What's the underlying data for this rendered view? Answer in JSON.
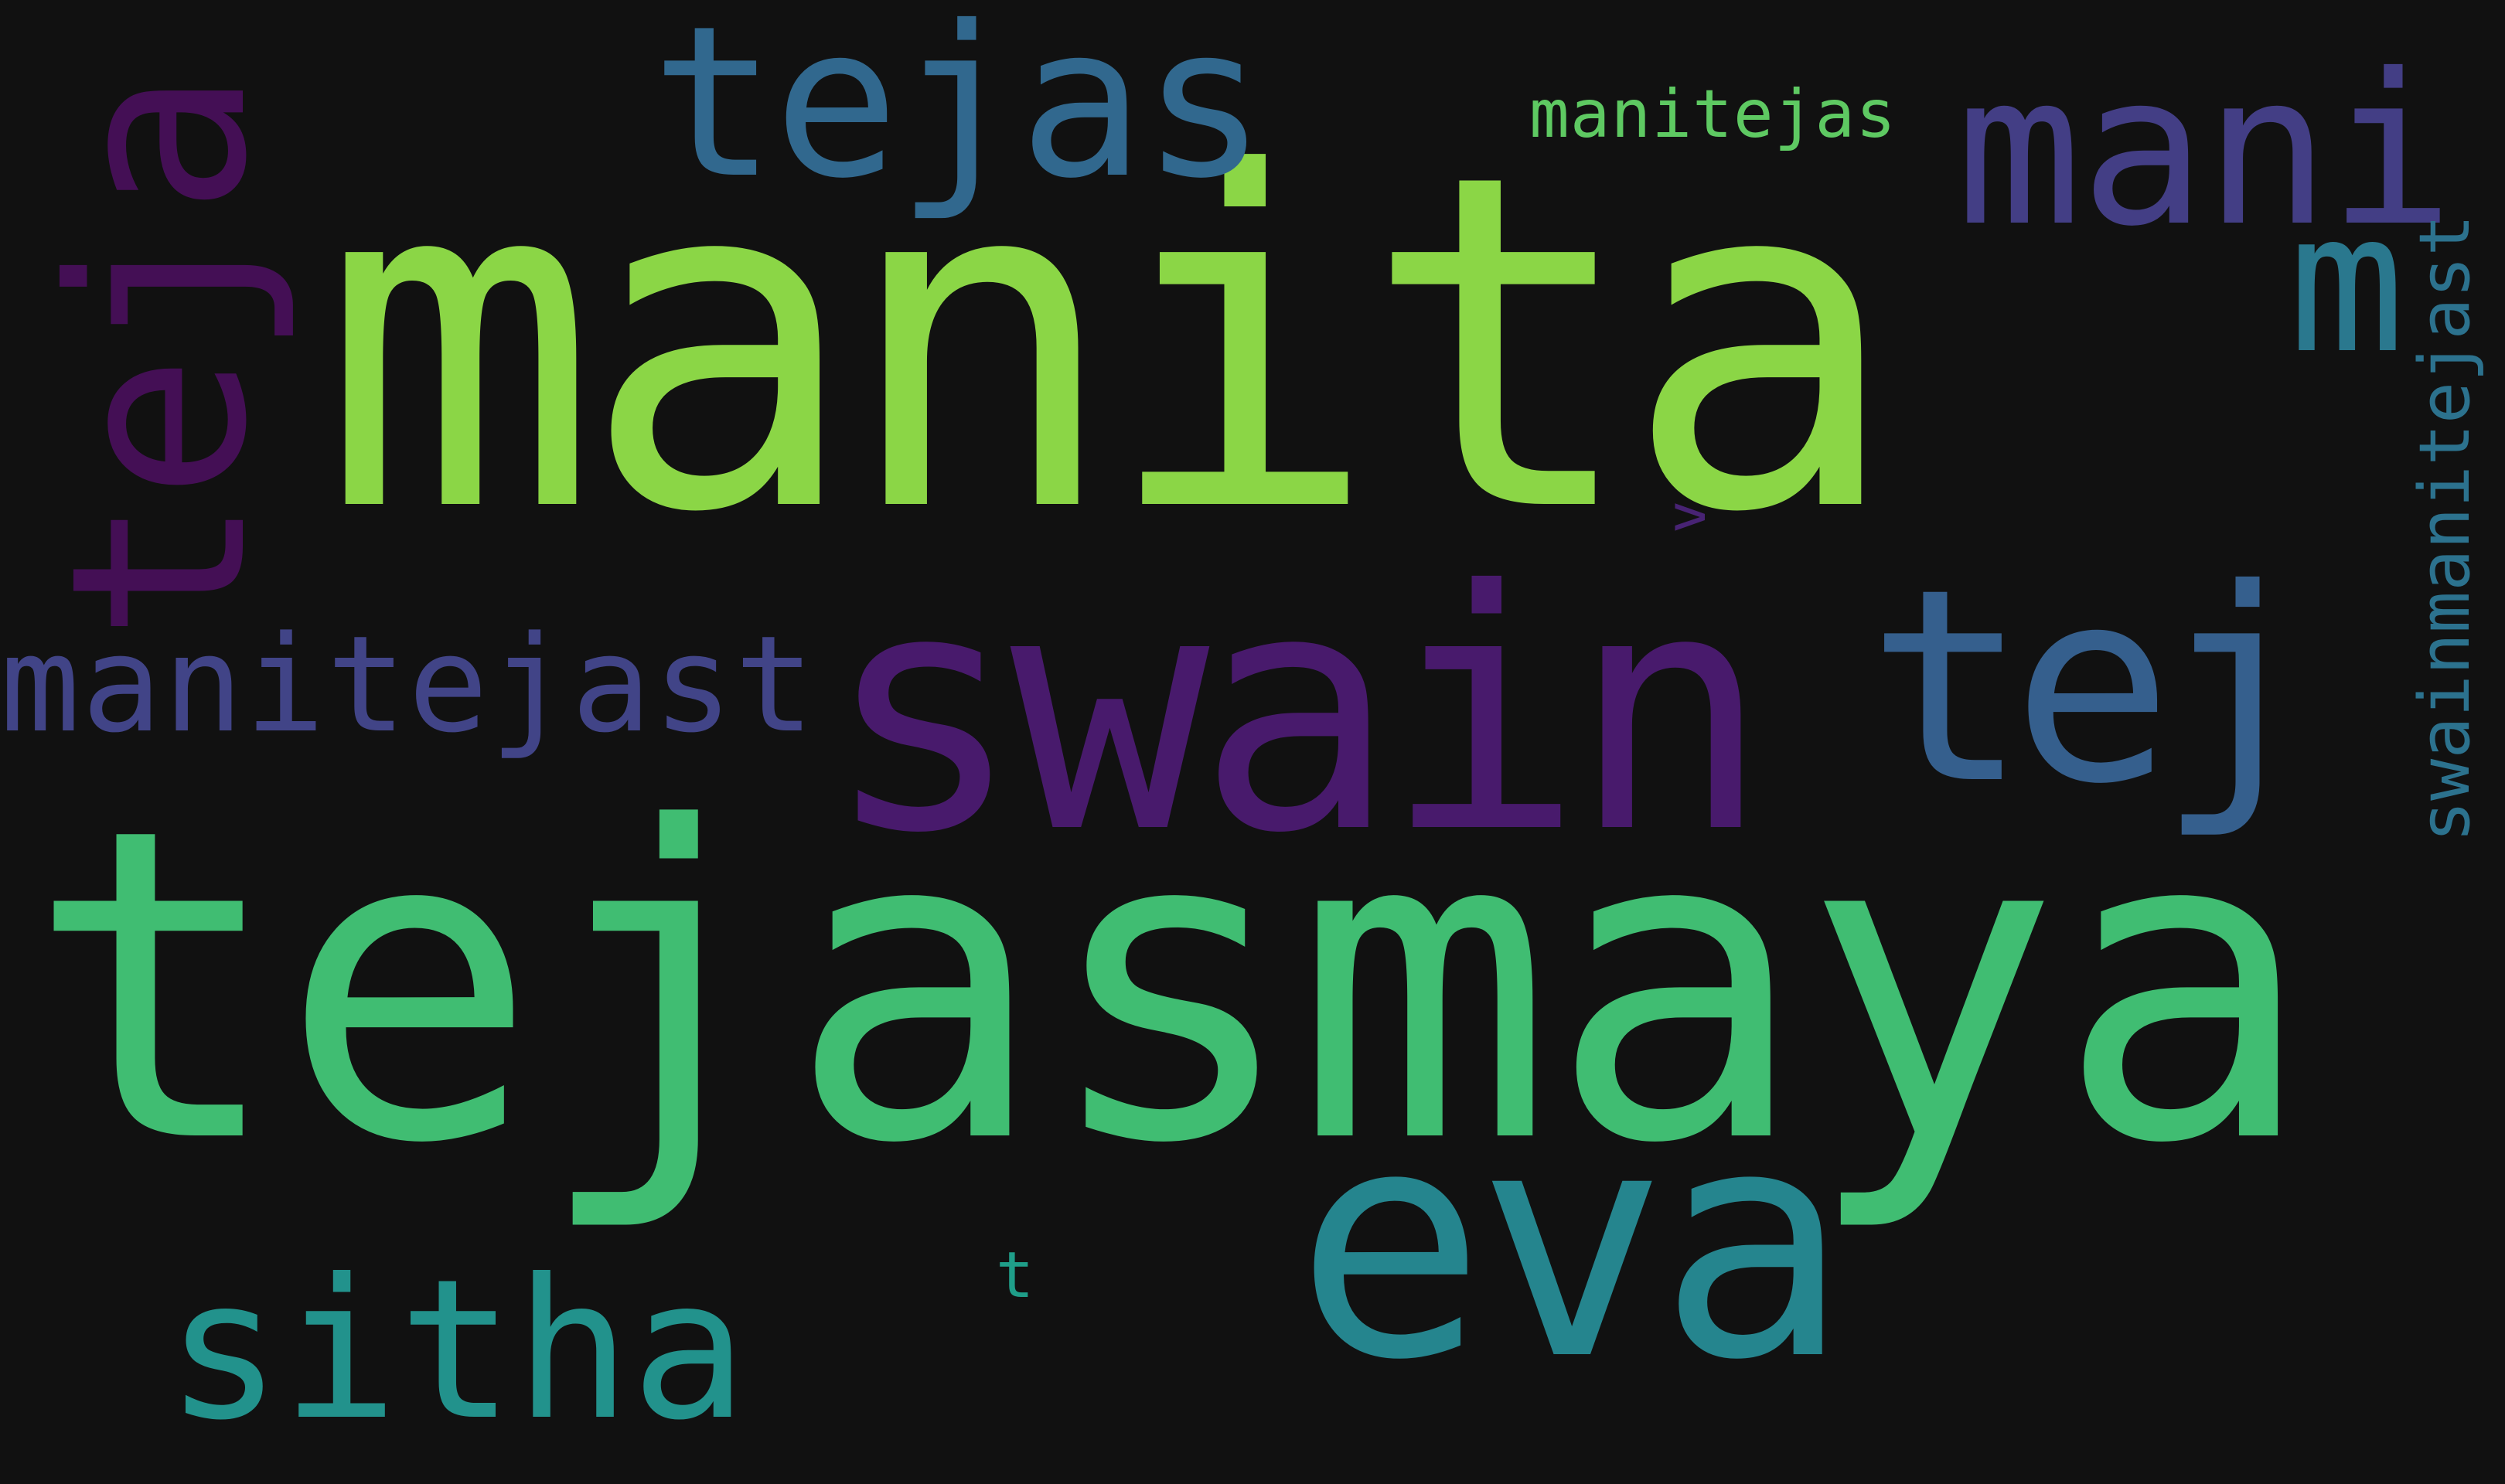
{
  "background": "#111111",
  "words": {
    "manita": {
      "text": "manita",
      "color": "#8bd646",
      "orientation": "horizontal"
    },
    "tejasmaya": {
      "text": "tejasmaya",
      "color": "#40bd72",
      "orientation": "horizontal"
    },
    "swain": {
      "text": "swain",
      "color": "#481a6c",
      "orientation": "horizontal"
    },
    "eva": {
      "text": "eva",
      "color": "#25858e",
      "orientation": "horizontal"
    },
    "teja": {
      "text": "teja",
      "color": "#440f55",
      "orientation": "vertical"
    },
    "tejas": {
      "text": "tejas",
      "color": "#31688e",
      "orientation": "horizontal"
    },
    "mani": {
      "text": "mani",
      "color": "#433e85",
      "orientation": "horizontal"
    },
    "tej": {
      "text": "tej",
      "color": "#355f8d",
      "orientation": "horizontal"
    },
    "sitha": {
      "text": "sitha",
      "color": "#22928c",
      "orientation": "horizontal"
    },
    "manitejast": {
      "text": "manitejast",
      "color": "#414487",
      "orientation": "horizontal"
    },
    "m": {
      "text": "m",
      "color": "#2a788e",
      "orientation": "horizontal"
    },
    "manitejas": {
      "text": "manitejas",
      "color": "#5ec962",
      "orientation": "horizontal"
    },
    "swainmanitejast": {
      "text": "swainmanitejast",
      "color": "#2c728e",
      "orientation": "vertical"
    },
    "t": {
      "text": "t",
      "color": "#1f9e89",
      "orientation": "horizontal"
    },
    "v": {
      "text": "v",
      "color": "#482374",
      "orientation": "vertical"
    }
  }
}
